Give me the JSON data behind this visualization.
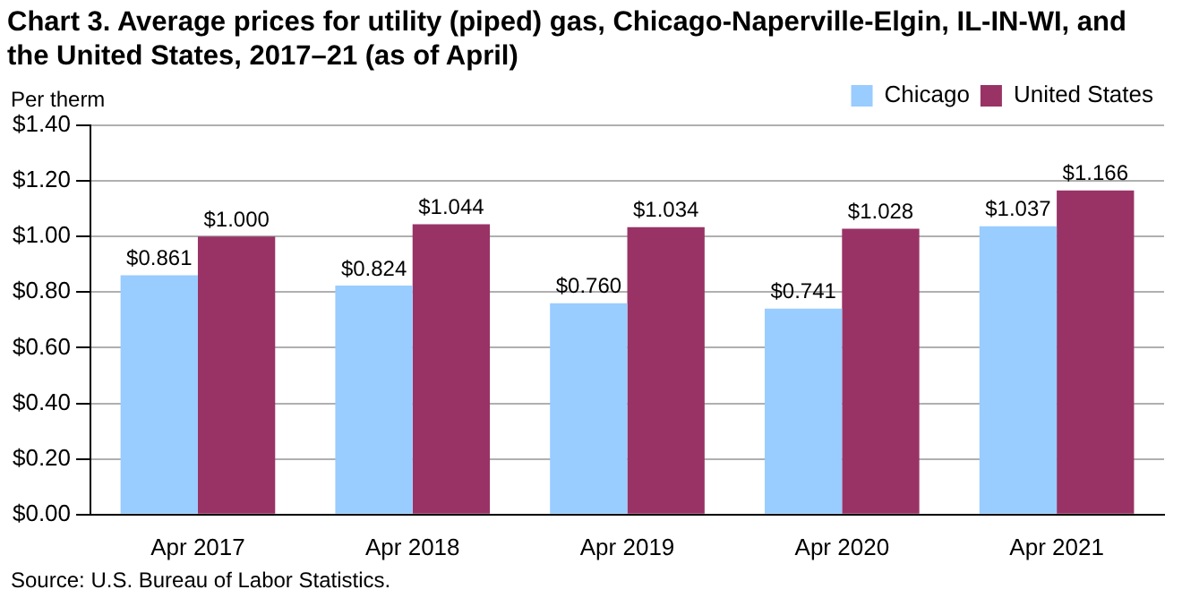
{
  "chart_data": {
    "type": "bar",
    "title": "Chart 3. Average prices for utility (piped) gas, Chicago-Naperville-Elgin,  IL-IN-WI, and the United States, 2017–21 (as of April)",
    "ylabel": "Per therm",
    "categories": [
      "Apr 2017",
      "Apr 2018",
      "Apr 2019",
      "Apr 2020",
      "Apr 2021"
    ],
    "series": [
      {
        "name": "Chicago",
        "color": "#99ccff",
        "values": [
          0.861,
          0.824,
          0.76,
          0.741,
          1.037
        ],
        "value_labels": [
          "$0.861",
          "$0.824",
          "$0.760",
          "$0.741",
          "$1.037"
        ]
      },
      {
        "name": "United States",
        "color": "#993366",
        "values": [
          1.0,
          1.044,
          1.034,
          1.028,
          1.166
        ],
        "value_labels": [
          "$1.000",
          "$1.044",
          "$1.034",
          "$1.028",
          "$1.166"
        ]
      }
    ],
    "ylim": [
      0,
      1.4
    ],
    "yticks": [
      {
        "value": 0,
        "label": "$0.00"
      },
      {
        "value": 0.2,
        "label": "$0.20"
      },
      {
        "value": 0.4,
        "label": "$0.40"
      },
      {
        "value": 0.6,
        "label": "$0.60"
      },
      {
        "value": 0.8,
        "label": "$0.80"
      },
      {
        "value": 1.0,
        "label": "$1.00"
      },
      {
        "value": 1.2,
        "label": "$1.20"
      },
      {
        "value": 1.4,
        "label": "$1.40"
      }
    ],
    "grid": "y",
    "legend": "top right",
    "annotations": [
      "Source: U.S. Bureau of Labor Statistics."
    ]
  }
}
